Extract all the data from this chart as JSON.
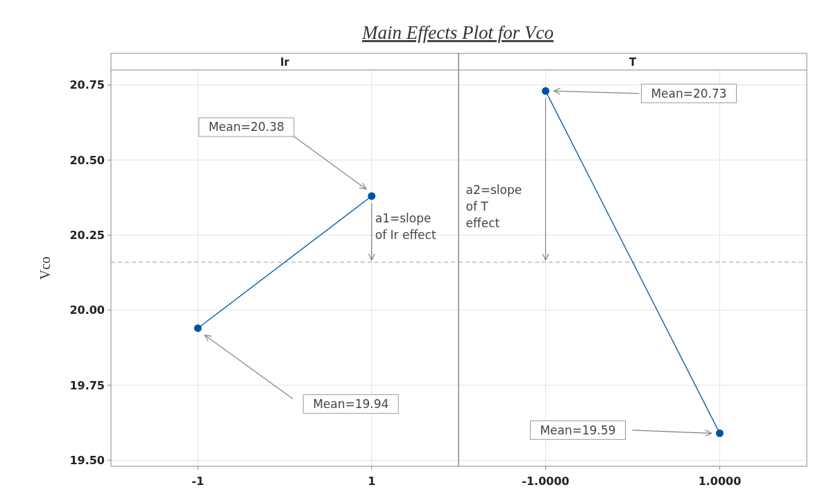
{
  "chart_data": [
    {
      "type": "line",
      "title": "Main Effects Plot for Vco",
      "subtitle": "Ir",
      "ylabel": "Vco",
      "categories": [
        "-1",
        "1"
      ],
      "series": [
        {
          "color": "#0054a6",
          "values": [
            19.94,
            20.38
          ]
        }
      ],
      "ylim": [
        19.48,
        20.8
      ],
      "yticks": [
        {
          "value": 19.5,
          "label": "19.50"
        },
        19.75,
        {
          "value": 20,
          "label": "20.00"
        },
        20.25,
        {
          "value": 20.5,
          "label": "20.50"
        },
        20.75
      ],
      "grid": true,
      "marker": "circle",
      "line_style": "solid",
      "ref_lines": [
        {
          "axis": "y",
          "value": 20.16,
          "color": "#a0a0a0",
          "line_style": "dashed"
        }
      ],
      "annotations": [
        "Mean=20.38",
        "Mean=19.94",
        {
          "text": "a1=slope of Ir effect",
          "x": "1",
          "y": 20.16
        }
      ]
    },
    {
      "type": "line",
      "subtitle": "T",
      "categories": [
        "-1.0000",
        "1.0000"
      ],
      "series": [
        {
          "color": "#0054a6",
          "values": [
            20.73,
            19.59
          ]
        }
      ],
      "ylim": [
        19.48,
        20.8
      ],
      "yticks": [
        19.5,
        19.75,
        20,
        20.25,
        20.5,
        20.75
      ],
      "tick_labels": "x",
      "grid": true,
      "marker": "circle",
      "line_style": "solid",
      "ref_lines": [
        {
          "axis": "y",
          "value": 20.16,
          "color": "#a0a0a0",
          "line_style": "dashed"
        }
      ],
      "annotations": [
        "Mean=20.73",
        "Mean=19.59",
        "a2=slope of T effect"
      ]
    }
  ]
}
